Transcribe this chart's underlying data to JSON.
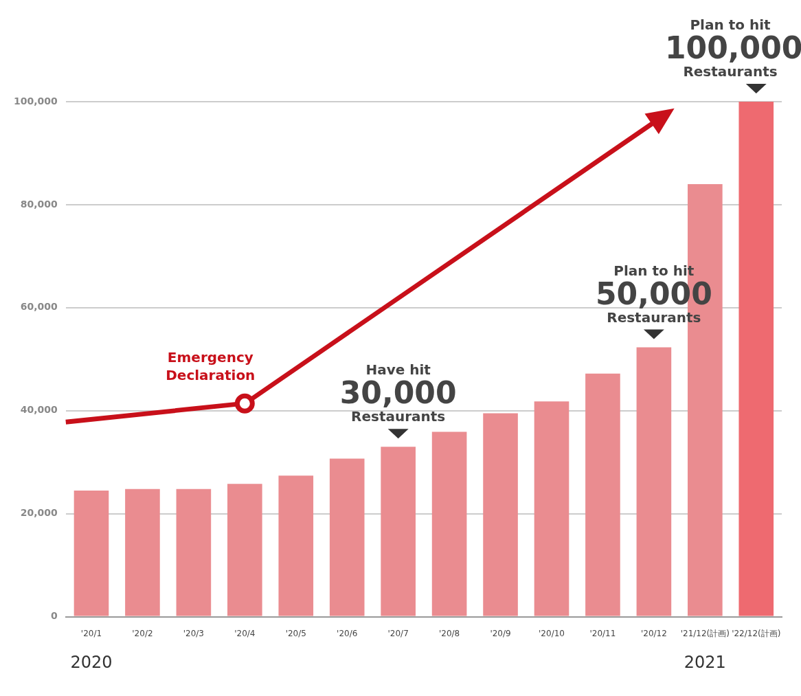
{
  "chart_data": {
    "type": "bar",
    "categories": [
      "'20/1",
      "'20/2",
      "'20/3",
      "'20/4",
      "'20/5",
      "'20/6",
      "'20/7",
      "'20/8",
      "'20/9",
      "'20/10",
      "'20/11",
      "'20/12",
      "'21/12(計画)",
      "'22/12(計画)"
    ],
    "values": [
      24500,
      24800,
      24800,
      25800,
      27400,
      30700,
      33000,
      35900,
      39500,
      41800,
      47200,
      52300,
      84000,
      100000
    ],
    "colors": [
      "#ea8c90",
      "#ea8c90",
      "#ea8c90",
      "#ea8c90",
      "#ea8c90",
      "#ea8c90",
      "#ea8c90",
      "#ea8c90",
      "#ea8c90",
      "#ea8c90",
      "#ea8c90",
      "#ea8c90",
      "#ea8c90",
      "#ee6a70"
    ],
    "ylim": [
      0,
      100000
    ],
    "yticks": [
      {
        "value": 0,
        "label": "0"
      },
      {
        "value": 20000,
        "label": "20,000"
      },
      {
        "value": 40000,
        "label": "40,000"
      },
      {
        "value": 60000,
        "label": "60,000"
      },
      {
        "value": 80000,
        "label": "80,000"
      },
      {
        "value": 100000,
        "label": "100,000"
      }
    ],
    "grid": "y",
    "legend": false,
    "annotations": [
      "Emergency\nDeclaration",
      {
        "text": "Have hit\n30,000\nRestaurants",
        "x": "'20/7",
        "y": 33000
      },
      {
        "text": "Plan to hit\n50,000\nRestaurants",
        "x": "'20/12",
        "y": 52300
      },
      {
        "text": "Plan to hit\n100,000\nRestaurants",
        "x": "'22/12(計画)",
        "y": 100000
      },
      "2020",
      "2021"
    ]
  }
}
